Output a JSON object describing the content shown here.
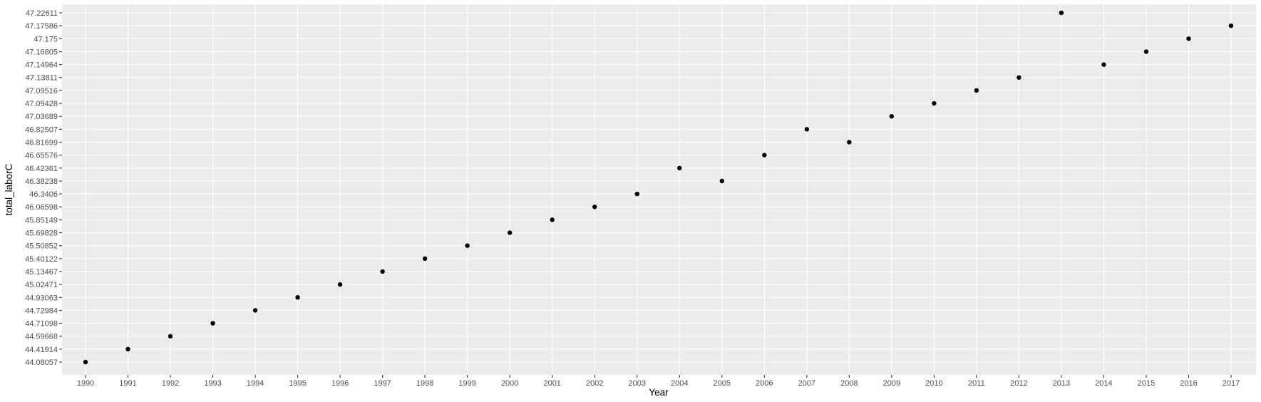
{
  "chart_data": {
    "type": "scatter",
    "title": "",
    "xlabel": "Year",
    "ylabel": "total_laborC",
    "x_scale": "discrete",
    "y_scale": "discrete",
    "grid": true,
    "legend": "none",
    "colors": {
      "panel": "#ebebeb",
      "grid": "#ffffff",
      "point": "#000000",
      "tick_label": "#4d4d4d"
    },
    "x_categories": [
      "1990",
      "1991",
      "1992",
      "1993",
      "1994",
      "1995",
      "1996",
      "1997",
      "1998",
      "1999",
      "2000",
      "2001",
      "2002",
      "2003",
      "2004",
      "2005",
      "2006",
      "2007",
      "2008",
      "2009",
      "2010",
      "2011",
      "2012",
      "2013",
      "2014",
      "2015",
      "2016",
      "2017"
    ],
    "y_categories": [
      "44.08057",
      "44.41914",
      "44.59668",
      "44.71098",
      "44.72984",
      "44.93063",
      "45.02471",
      "45.13467",
      "45.40122",
      "45.50852",
      "45.69828",
      "45.85149",
      "46.06598",
      "46.3406",
      "46.38238",
      "46.42361",
      "46.65576",
      "46.81699",
      "46.82507",
      "47.03689",
      "47.09428",
      "47.09516",
      "47.13811",
      "47.14964",
      "47.16805",
      "47.175",
      "47.17586",
      "47.22611"
    ],
    "points": [
      {
        "x": "1990",
        "y": "44.08057"
      },
      {
        "x": "1991",
        "y": "44.41914"
      },
      {
        "x": "1992",
        "y": "44.59668"
      },
      {
        "x": "1993",
        "y": "44.71098"
      },
      {
        "x": "1994",
        "y": "44.72984"
      },
      {
        "x": "1995",
        "y": "44.93063"
      },
      {
        "x": "1996",
        "y": "45.02471"
      },
      {
        "x": "1997",
        "y": "45.13467"
      },
      {
        "x": "1998",
        "y": "45.40122"
      },
      {
        "x": "1999",
        "y": "45.50852"
      },
      {
        "x": "2000",
        "y": "45.69828"
      },
      {
        "x": "2001",
        "y": "45.85149"
      },
      {
        "x": "2002",
        "y": "46.06598"
      },
      {
        "x": "2003",
        "y": "46.3406"
      },
      {
        "x": "2004",
        "y": "46.42361"
      },
      {
        "x": "2005",
        "y": "46.38238"
      },
      {
        "x": "2006",
        "y": "46.65576"
      },
      {
        "x": "2007",
        "y": "46.82507"
      },
      {
        "x": "2008",
        "y": "46.81699"
      },
      {
        "x": "2009",
        "y": "47.03689"
      },
      {
        "x": "2010",
        "y": "47.09428"
      },
      {
        "x": "2011",
        "y": "47.09516"
      },
      {
        "x": "2012",
        "y": "47.13811"
      },
      {
        "x": "2013",
        "y": "47.22611"
      },
      {
        "x": "2014",
        "y": "47.14964"
      },
      {
        "x": "2015",
        "y": "47.16805"
      },
      {
        "x": "2016",
        "y": "47.175"
      },
      {
        "x": "2017",
        "y": "47.17586"
      }
    ]
  }
}
